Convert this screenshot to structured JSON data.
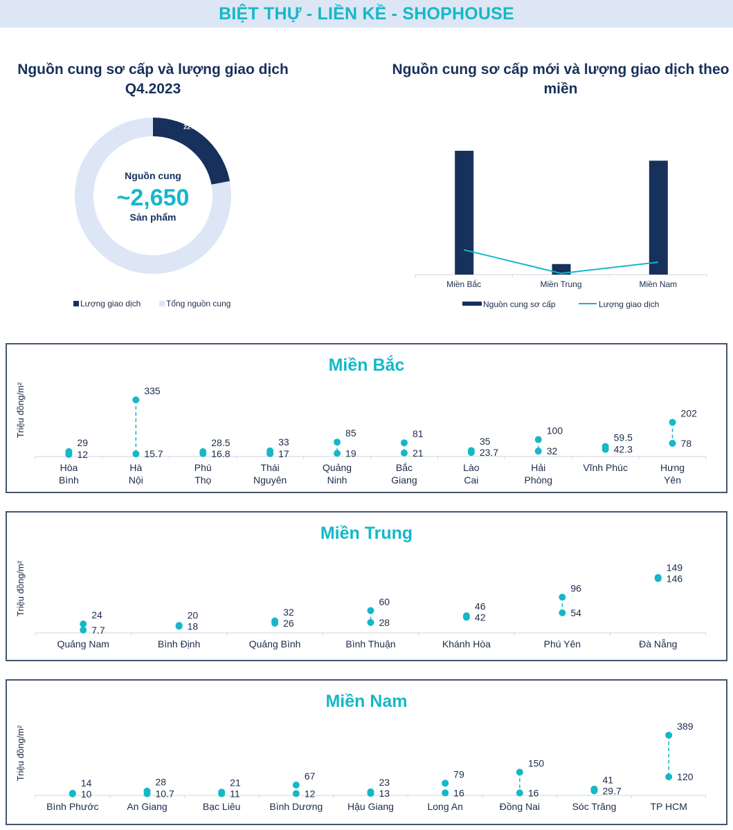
{
  "banner": {
    "title": "BIỆT THỰ - LIỀN KỀ - SHOPHOUSE"
  },
  "colors": {
    "navy": "#17305c",
    "teal": "#14b8c8",
    "light": "#dde6f5",
    "axis": "#cfd5de",
    "text": "#1b2a4a"
  },
  "chart_data": [
    {
      "type": "pie",
      "variant": "donut",
      "title": "Nguồn cung sơ cấp và lượng giao dịch Q4.2023",
      "center_label_top": "Nguồn cung",
      "center_value": "~2,650",
      "center_label_bottom": "Sản phẩm",
      "slices": [
        {
          "name": "Lượng giao dịch",
          "value": 22,
          "label": "22%",
          "color": "#17305c"
        },
        {
          "name": "Tổng nguồn cung",
          "value": 78,
          "label": "",
          "color": "#dde6f5"
        }
      ],
      "legend": [
        "Lượng giao dịch",
        "Tổng nguồn cung"
      ],
      "legend_position": "bottom"
    },
    {
      "type": "bar",
      "title": "Nguồn cung sơ cấp mới và lượng giao dịch theo miền",
      "categories": [
        "Miền Bắc",
        "Miền Trung",
        "Miền Nam"
      ],
      "series": [
        {
          "name": "Nguồn cung sơ cấp",
          "kind": "bar",
          "values": [
            100,
            8.5,
            92
          ],
          "color": "#17305c"
        },
        {
          "name": "Lượng giao dịch",
          "kind": "line",
          "values": [
            20,
            1,
            10
          ],
          "color": "#14b8c8"
        }
      ],
      "value_unit": "relative (no axis shown)",
      "ylim": [
        0,
        100
      ],
      "grid": false,
      "legend_position": "bottom"
    },
    {
      "type": "scatter",
      "variant": "dumbbell",
      "title": "Miền Bắc",
      "ylabel": "Triệu đồng/m²",
      "ylim": [
        0,
        360
      ],
      "categories": [
        {
          "label": [
            "Hòa",
            "Bình"
          ],
          "high": 29,
          "low": 12,
          "high_label": "29",
          "low_label": "12"
        },
        {
          "label": [
            "Hà",
            "Nội"
          ],
          "high": 335,
          "low": 15.7,
          "high_label": "335",
          "low_label": "15.7"
        },
        {
          "label": [
            "Phú",
            "Thọ"
          ],
          "high": 28.5,
          "low": 16.8,
          "high_label": "28.5",
          "low_label": "16.8"
        },
        {
          "label": [
            "Thái",
            "Nguyên"
          ],
          "high": 33,
          "low": 17,
          "high_label": "33",
          "low_label": "17"
        },
        {
          "label": [
            "Quảng",
            "Ninh"
          ],
          "high": 85,
          "low": 19,
          "high_label": "85",
          "low_label": "19"
        },
        {
          "label": [
            "Bắc",
            "Giang"
          ],
          "high": 81,
          "low": 21,
          "high_label": "81",
          "low_label": "21"
        },
        {
          "label": [
            "Lào",
            "Cai"
          ],
          "high": 35,
          "low": 23.7,
          "high_label": "35",
          "low_label": "23.7"
        },
        {
          "label": [
            "Hải",
            "Phòng"
          ],
          "high": 100,
          "low": 32,
          "high_label": "100",
          "low_label": "32"
        },
        {
          "label": [
            "Vĩnh Phúc"
          ],
          "high": 59.5,
          "low": 42.3,
          "high_label": "59.5",
          "low_label": "42.3"
        },
        {
          "label": [
            "Hưng",
            "Yên"
          ],
          "high": 202,
          "low": 78,
          "high_label": "202",
          "low_label": "78"
        }
      ]
    },
    {
      "type": "scatter",
      "variant": "dumbbell",
      "title": "Miền Trung",
      "ylabel": "Triệu đồng/m²",
      "ylim": [
        0,
        160
      ],
      "categories": [
        {
          "label": [
            "Quảng Nam"
          ],
          "high": 24,
          "low": 7.7,
          "high_label": "24",
          "low_label": "7.7"
        },
        {
          "label": [
            "Bình Định"
          ],
          "high": 20,
          "low": 18,
          "high_label": "20",
          "low_label": "18"
        },
        {
          "label": [
            "Quảng Bình"
          ],
          "high": 32,
          "low": 26,
          "high_label": "32",
          "low_label": "26"
        },
        {
          "label": [
            "Bình Thuận"
          ],
          "high": 60,
          "low": 28,
          "high_label": "60",
          "low_label": "28"
        },
        {
          "label": [
            "Khánh Hòa"
          ],
          "high": 46,
          "low": 42,
          "high_label": "46",
          "low_label": "42"
        },
        {
          "label": [
            "Phú Yên"
          ],
          "high": 96,
          "low": 54,
          "high_label": "96",
          "low_label": "54"
        },
        {
          "label": [
            "Đà Nẵng"
          ],
          "high": 149,
          "low": 146,
          "high_label": "149",
          "low_label": "146"
        }
      ]
    },
    {
      "type": "scatter",
      "variant": "dumbbell",
      "title": "Miền Nam",
      "ylabel": "Triệu đồng/m²",
      "ylim": [
        0,
        420
      ],
      "categories": [
        {
          "label": [
            "Bình Phước"
          ],
          "high": 14,
          "low": 10,
          "high_label": "14",
          "low_label": "10"
        },
        {
          "label": [
            "An Giang"
          ],
          "high": 28,
          "low": 10.7,
          "high_label": "28",
          "low_label": "10.7"
        },
        {
          "label": [
            "Bạc Liêu"
          ],
          "high": 21,
          "low": 11,
          "high_label": "21",
          "low_label": "11"
        },
        {
          "label": [
            "Bình Dương"
          ],
          "high": 67,
          "low": 12,
          "high_label": "67",
          "low_label": "12"
        },
        {
          "label": [
            "Hậu Giang"
          ],
          "high": 23,
          "low": 13,
          "high_label": "23",
          "low_label": "13"
        },
        {
          "label": [
            "Long An"
          ],
          "high": 79,
          "low": 16,
          "high_label": "79",
          "low_label": "16"
        },
        {
          "label": [
            "Đồng Nai"
          ],
          "high": 150,
          "low": 16,
          "high_label": "150",
          "low_label": "16"
        },
        {
          "label": [
            "Sóc Trăng"
          ],
          "high": 41,
          "low": 29.7,
          "high_label": "41",
          "low_label": "29.7"
        },
        {
          "label": [
            "TP HCM"
          ],
          "high": 389,
          "low": 120,
          "high_label": "389",
          "low_label": "120"
        }
      ]
    }
  ]
}
